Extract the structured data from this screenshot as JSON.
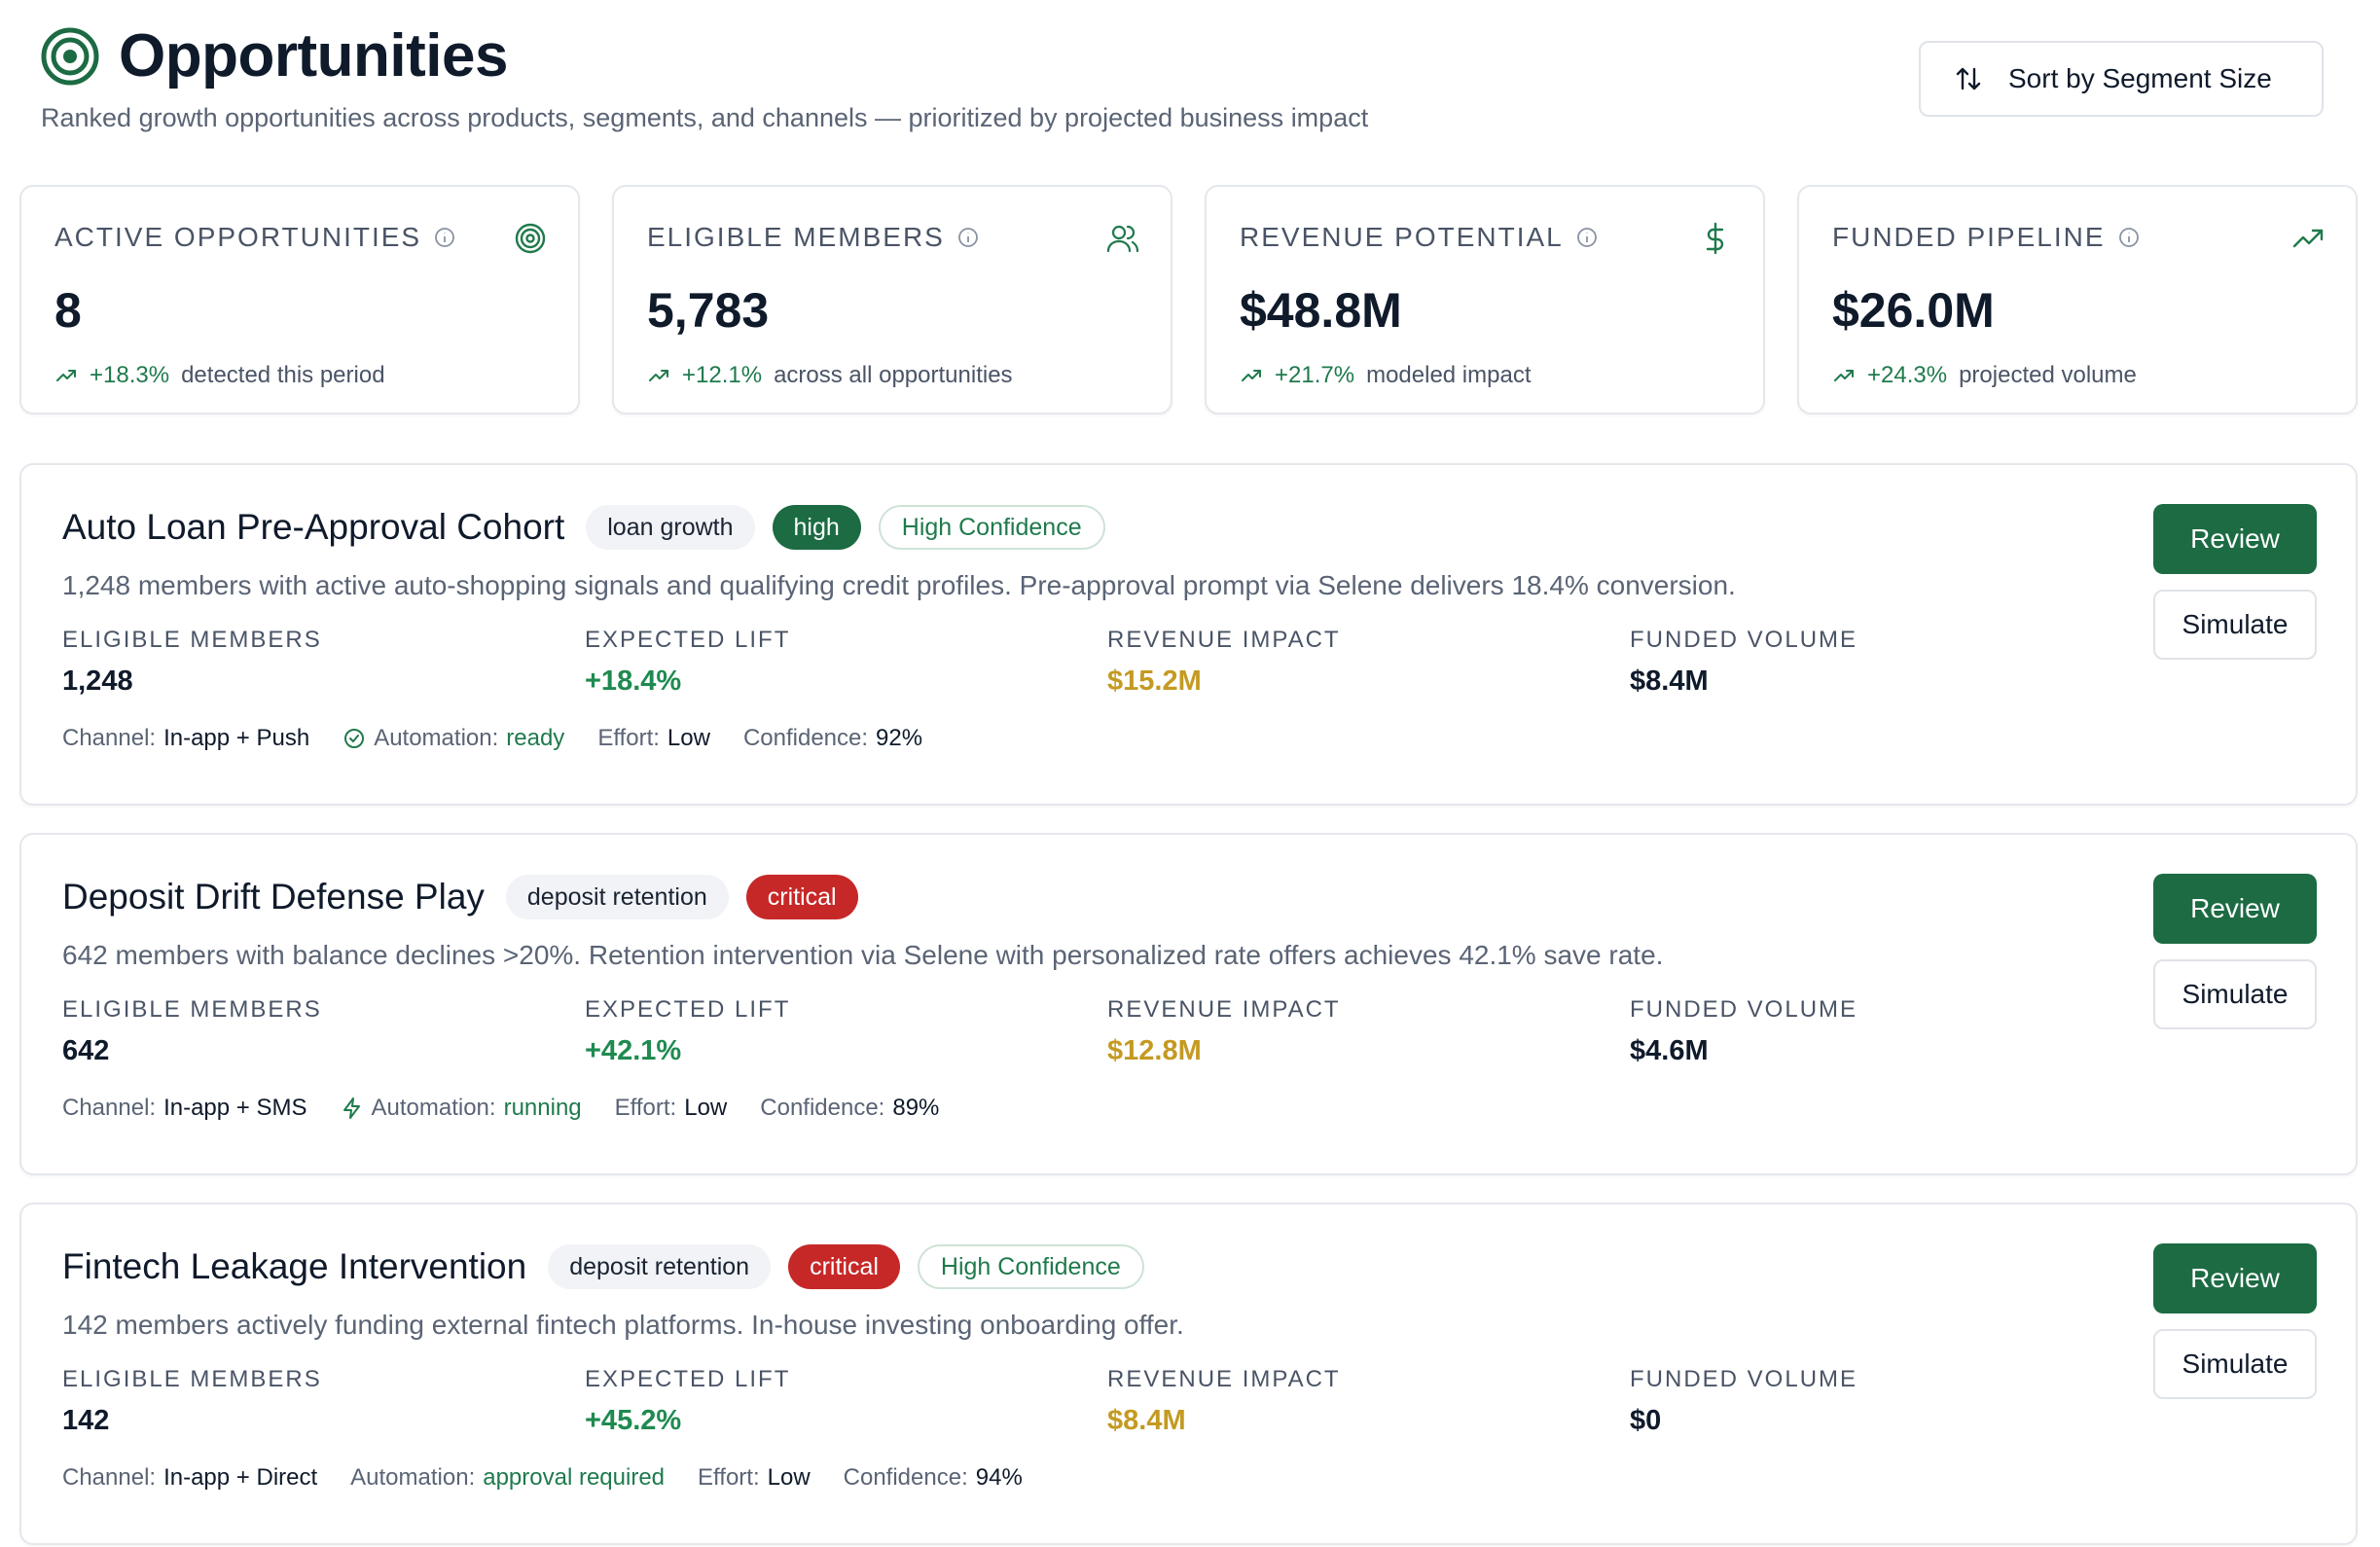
{
  "header": {
    "title": "Opportunities",
    "subtitle": "Ranked growth opportunities across products, segments, and channels — prioritized by projected business impact",
    "sort_label": "Sort by Segment Size"
  },
  "kpis": [
    {
      "label": "ACTIVE OPPORTUNITIES",
      "value": "8",
      "delta": "+18.3%",
      "note": "detected this period",
      "icon": "target-icon"
    },
    {
      "label": "ELIGIBLE MEMBERS",
      "value": "5,783",
      "delta": "+12.1%",
      "note": "across all opportunities",
      "icon": "users-icon"
    },
    {
      "label": "REVENUE POTENTIAL",
      "value": "$48.8M",
      "delta": "+21.7%",
      "note": "modeled impact",
      "icon": "dollar-icon"
    },
    {
      "label": "FUNDED PIPELINE",
      "value": "$26.0M",
      "delta": "+24.3%",
      "note": "projected volume",
      "icon": "trending-up-icon"
    }
  ],
  "metric_labels": {
    "eligible": "ELIGIBLE MEMBERS",
    "lift": "EXPECTED LIFT",
    "revenue": "REVENUE IMPACT",
    "funded": "FUNDED VOLUME"
  },
  "meta_labels": {
    "channel": "Channel:",
    "automation": "Automation:",
    "effort": "Effort:",
    "confidence": "Confidence:"
  },
  "buttons": {
    "review": "Review",
    "simulate": "Simulate"
  },
  "opportunities": [
    {
      "title": "Auto Loan Pre-Approval Cohort",
      "category": "loan growth",
      "priority": "high",
      "confidence_tag": "High Confidence",
      "description": "1,248 members with active auto-shopping signals and qualifying credit profiles. Pre-approval prompt via Selene delivers 18.4% conversion.",
      "eligible": "1,248",
      "lift": "+18.4%",
      "revenue": "$15.2M",
      "funded": "$8.4M",
      "channel": "In-app + Push",
      "automation": "ready",
      "automation_icon": "check-circle-icon",
      "effort": "Low",
      "confidence": "92%"
    },
    {
      "title": "Deposit Drift Defense Play",
      "category": "deposit retention",
      "priority": "critical",
      "confidence_tag": "",
      "description": "642 members with balance declines >20%. Retention intervention via Selene with personalized rate offers achieves 42.1% save rate.",
      "eligible": "642",
      "lift": "+42.1%",
      "revenue": "$12.8M",
      "funded": "$4.6M",
      "channel": "In-app + SMS",
      "automation": "running",
      "automation_icon": "lightning-icon",
      "effort": "Low",
      "confidence": "89%"
    },
    {
      "title": "Fintech Leakage Intervention",
      "category": "deposit retention",
      "priority": "critical",
      "confidence_tag": "High Confidence",
      "description": "142 members actively funding external fintech platforms. In-house investing onboarding offer.",
      "eligible": "142",
      "lift": "+45.2%",
      "revenue": "$8.4M",
      "funded": "$0",
      "channel": "In-app + Direct",
      "automation": "approval required",
      "automation_icon": "",
      "effort": "Low",
      "confidence": "94%"
    }
  ],
  "colors": {
    "brand": "#1c6b43",
    "positive": "#1f8a50",
    "revenue": "#c49a22",
    "critical": "#c62828"
  }
}
